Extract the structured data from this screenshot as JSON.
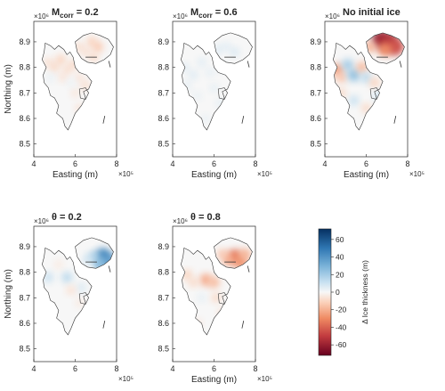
{
  "figure": {
    "colorbar": {
      "label": "Δ Ice thickness (m)",
      "ticks": [
        60,
        40,
        20,
        0,
        -20,
        -40,
        -60
      ],
      "range": [
        -72,
        72
      ],
      "stops": [
        {
          "v": -72,
          "color": "#67001f"
        },
        {
          "v": -50,
          "color": "#c23b3f"
        },
        {
          "v": -30,
          "color": "#ef8a62"
        },
        {
          "v": -12,
          "color": "#fbd0b9"
        },
        {
          "v": 0,
          "color": "#f7f7f7"
        },
        {
          "v": 12,
          "color": "#c5dff0"
        },
        {
          "v": 30,
          "color": "#79b2d8"
        },
        {
          "v": 50,
          "color": "#2f77b3"
        },
        {
          "v": 72,
          "color": "#053061"
        }
      ]
    },
    "axes": {
      "xlim": [
        400000,
        800000
      ],
      "ylim": [
        8450000,
        8980000
      ],
      "xticks": [
        400000,
        600000,
        800000
      ],
      "xtick_labels": [
        "4",
        "6",
        "8"
      ],
      "yticks": [
        8500000,
        8600000,
        8700000,
        8800000,
        8900000
      ],
      "ytick_labels": [
        "8.5",
        "8.6",
        "8.7",
        "8.8",
        "8.9"
      ],
      "x_exponent": "×10⁵",
      "y_exponent": "×10⁶"
    }
  },
  "chart_data": [
    {
      "type": "heatmap",
      "title_main": "M",
      "title_sub": "corr",
      "title_rest": " = 0.2",
      "xlabel": "Easting (m)",
      "ylabel": "Northing (m)",
      "show_xlabel": true,
      "show_ylabel": true,
      "patches": [
        {
          "x": 470000,
          "y": 8820000,
          "v": -8
        },
        {
          "x": 500000,
          "y": 8800000,
          "v": -10
        },
        {
          "x": 530000,
          "y": 8830000,
          "v": -12
        },
        {
          "x": 560000,
          "y": 8790000,
          "v": -9
        },
        {
          "x": 590000,
          "y": 8810000,
          "v": -10
        },
        {
          "x": 620000,
          "y": 8880000,
          "v": -9
        },
        {
          "x": 650000,
          "y": 8860000,
          "v": -8
        },
        {
          "x": 680000,
          "y": 8900000,
          "v": -12
        },
        {
          "x": 710000,
          "y": 8880000,
          "v": -14
        },
        {
          "x": 690000,
          "y": 8840000,
          "v": -10
        },
        {
          "x": 620000,
          "y": 8760000,
          "v": -7
        },
        {
          "x": 650000,
          "y": 8730000,
          "v": -9
        },
        {
          "x": 600000,
          "y": 8700000,
          "v": -6
        },
        {
          "x": 540000,
          "y": 8760000,
          "v": -7
        },
        {
          "x": 620000,
          "y": 8640000,
          "v": -7
        },
        {
          "x": 480000,
          "y": 8760000,
          "v": 4
        },
        {
          "x": 580000,
          "y": 8740000,
          "v": 3
        }
      ]
    },
    {
      "type": "heatmap",
      "title_main": "M",
      "title_sub": "corr",
      "title_rest": " = 0.6",
      "xlabel": "Easting (m)",
      "ylabel": "",
      "show_xlabel": true,
      "show_ylabel": false,
      "patches": [
        {
          "x": 460000,
          "y": 8800000,
          "v": 6
        },
        {
          "x": 500000,
          "y": 8770000,
          "v": 7
        },
        {
          "x": 540000,
          "y": 8820000,
          "v": 6
        },
        {
          "x": 580000,
          "y": 8780000,
          "v": 5
        },
        {
          "x": 620000,
          "y": 8870000,
          "v": 7
        },
        {
          "x": 660000,
          "y": 8880000,
          "v": 6
        },
        {
          "x": 700000,
          "y": 8860000,
          "v": 8
        },
        {
          "x": 640000,
          "y": 8800000,
          "v": 6
        },
        {
          "x": 600000,
          "y": 8720000,
          "v": 5
        },
        {
          "x": 520000,
          "y": 8690000,
          "v": 4
        },
        {
          "x": 630000,
          "y": 8660000,
          "v": 5
        },
        {
          "x": 560000,
          "y": 8600000,
          "v": 4
        },
        {
          "x": 470000,
          "y": 8730000,
          "v": 5
        }
      ]
    },
    {
      "type": "heatmap",
      "title_main": "No initial ice",
      "title_sub": "",
      "title_rest": "",
      "xlabel": "Easting (m)",
      "ylabel": "",
      "show_xlabel": true,
      "show_ylabel": false,
      "patches": [
        {
          "x": 670000,
          "y": 8910000,
          "v": -60
        },
        {
          "x": 710000,
          "y": 8900000,
          "v": -55
        },
        {
          "x": 740000,
          "y": 8880000,
          "v": -45
        },
        {
          "x": 690000,
          "y": 8870000,
          "v": -30
        },
        {
          "x": 620000,
          "y": 8880000,
          "v": -20
        },
        {
          "x": 460000,
          "y": 8790000,
          "v": -25
        },
        {
          "x": 480000,
          "y": 8760000,
          "v": -15
        },
        {
          "x": 510000,
          "y": 8810000,
          "v": 20
        },
        {
          "x": 540000,
          "y": 8770000,
          "v": 25
        },
        {
          "x": 580000,
          "y": 8800000,
          "v": -18
        },
        {
          "x": 600000,
          "y": 8760000,
          "v": 15
        },
        {
          "x": 640000,
          "y": 8740000,
          "v": -12
        },
        {
          "x": 540000,
          "y": 8670000,
          "v": 12
        },
        {
          "x": 600000,
          "y": 8640000,
          "v": -10
        },
        {
          "x": 660000,
          "y": 8690000,
          "v": 10
        },
        {
          "x": 480000,
          "y": 8700000,
          "v": -10
        }
      ]
    },
    {
      "type": "heatmap",
      "title_main": "θ",
      "title_sub": "",
      "title_rest": " = 0.2",
      "xlabel": "",
      "ylabel": "Northing (m)",
      "show_xlabel": false,
      "show_ylabel": true,
      "patches": [
        {
          "x": 735000,
          "y": 8860000,
          "v": 45
        },
        {
          "x": 755000,
          "y": 8840000,
          "v": 38
        },
        {
          "x": 720000,
          "y": 8830000,
          "v": 25
        },
        {
          "x": 690000,
          "y": 8860000,
          "v": 18
        },
        {
          "x": 660000,
          "y": 8850000,
          "v": 10
        },
        {
          "x": 560000,
          "y": 8780000,
          "v": 15
        },
        {
          "x": 470000,
          "y": 8780000,
          "v": 12
        },
        {
          "x": 630000,
          "y": 8740000,
          "v": 8
        },
        {
          "x": 580000,
          "y": 8730000,
          "v": -8
        },
        {
          "x": 620000,
          "y": 8680000,
          "v": -5
        },
        {
          "x": 520000,
          "y": 8830000,
          "v": -5
        }
      ]
    },
    {
      "type": "heatmap",
      "title_main": "θ",
      "title_sub": "",
      "title_rest": " = 0.8",
      "xlabel": "Easting (m)",
      "ylabel": "",
      "show_xlabel": true,
      "show_ylabel": false,
      "patches": [
        {
          "x": 700000,
          "y": 8860000,
          "v": -35
        },
        {
          "x": 730000,
          "y": 8840000,
          "v": -28
        },
        {
          "x": 670000,
          "y": 8850000,
          "v": -22
        },
        {
          "x": 640000,
          "y": 8870000,
          "v": -15
        },
        {
          "x": 750000,
          "y": 8870000,
          "v": -20
        },
        {
          "x": 560000,
          "y": 8770000,
          "v": -22
        },
        {
          "x": 600000,
          "y": 8760000,
          "v": -18
        },
        {
          "x": 470000,
          "y": 8790000,
          "v": -12
        },
        {
          "x": 500000,
          "y": 8760000,
          "v": -10
        },
        {
          "x": 610000,
          "y": 8700000,
          "v": -10
        },
        {
          "x": 640000,
          "y": 8640000,
          "v": -8
        },
        {
          "x": 540000,
          "y": 8700000,
          "v": 5
        },
        {
          "x": 520000,
          "y": 8600000,
          "v": -6
        }
      ]
    }
  ]
}
